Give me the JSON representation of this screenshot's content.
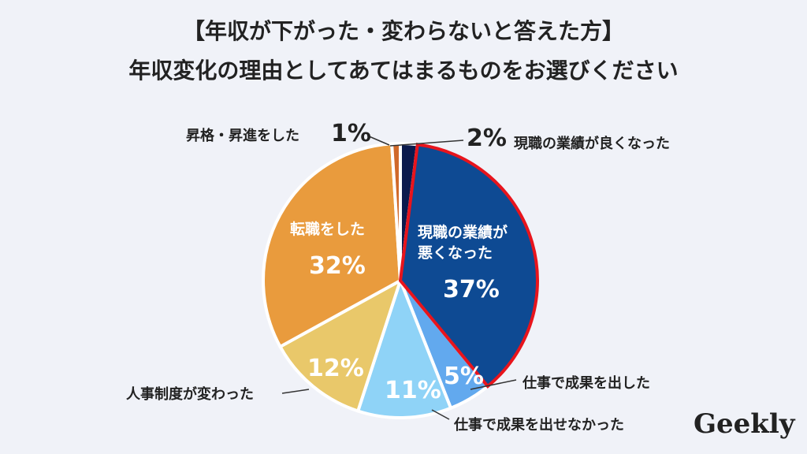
{
  "chart_data": {
    "type": "pie",
    "title": [
      "【年収が下がった・変わらないと答えた方】",
      "年収変化の理由としてあてはまるものをお選びください"
    ],
    "categories": [
      "現職の業績が良くなった",
      "現職の業績が悪くなった",
      "仕事で成果を出した",
      "仕事で成果を出せなかった",
      "人事制度が変わった",
      "転職をした",
      "昇格・昇進をした"
    ],
    "values": [
      2,
      37,
      5,
      11,
      12,
      32,
      1
    ],
    "value_labels": [
      "2%",
      "37%",
      "5%",
      "11%",
      "12%",
      "32%",
      "1%"
    ],
    "colors": [
      "#0b1a4d",
      "#0e4a93",
      "#62a9ee",
      "#8fd3f7",
      "#e9c86a",
      "#e99b3d",
      "#d0692a"
    ],
    "highlight": 1,
    "highlight_color": "#e8141c",
    "logo": "Geekly"
  }
}
